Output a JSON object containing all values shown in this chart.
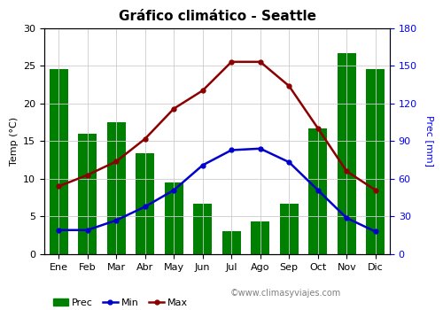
{
  "title": "Gráfico climático - Seattle",
  "months": [
    "Ene",
    "Feb",
    "Mar",
    "Abr",
    "May",
    "Jun",
    "Jul",
    "Ago",
    "Sep",
    "Oct",
    "Nov",
    "Dic"
  ],
  "prec": [
    147,
    96,
    105,
    80,
    57,
    40,
    18,
    26,
    40,
    100,
    160,
    147
  ],
  "temp_min": [
    3.2,
    3.2,
    4.5,
    6.3,
    8.5,
    11.8,
    13.8,
    14.0,
    12.2,
    8.5,
    4.8,
    3.0
  ],
  "temp_max": [
    9.0,
    10.5,
    12.3,
    15.3,
    19.3,
    21.7,
    25.5,
    25.5,
    22.3,
    16.7,
    11.0,
    8.5
  ],
  "bar_color": "#008000",
  "min_color": "#0000CD",
  "max_color": "#8B0000",
  "temp_ylim": [
    0,
    30
  ],
  "prec_ylim": [
    0,
    180
  ],
  "temp_yticks": [
    0,
    5,
    10,
    15,
    20,
    25,
    30
  ],
  "prec_yticks": [
    0,
    30,
    60,
    90,
    120,
    150,
    180
  ],
  "ylabel_left": "Temp (°C)",
  "ylabel_right": "Prec [mm]",
  "watermark": "©www.climasyviajes.com",
  "legend_labels": [
    "Prec",
    "Min",
    "Max"
  ],
  "title_fontsize": 11,
  "label_fontsize": 8,
  "tick_fontsize": 8
}
